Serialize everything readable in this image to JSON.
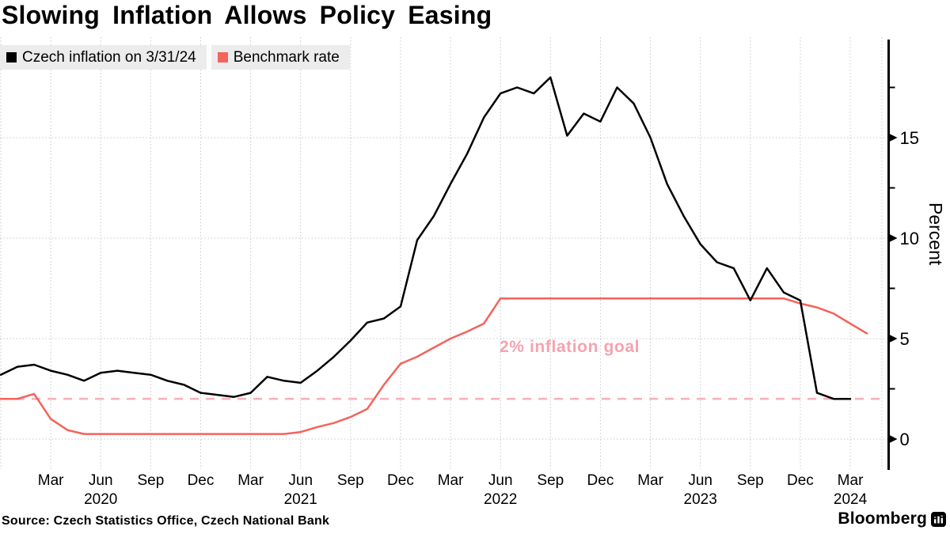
{
  "title": "Slowing Inflation Allows Policy Easing",
  "legend": [
    {
      "label": "Czech inflation on 3/31/24",
      "color": "#000000"
    },
    {
      "label": "Benchmark rate",
      "color": "#f4635c"
    }
  ],
  "source": "Source: Czech Statistics Office, Czech National Bank",
  "branding": {
    "logo_text": "Bloomberg",
    "logo_icon": "bar-chart-icon"
  },
  "chart_data": {
    "type": "line",
    "x_unit": "month",
    "x_start": "2019-12",
    "ylabel": "Percent",
    "y_ticks": [
      0,
      5,
      10,
      15
    ],
    "y_minor_ticks": [
      2.5,
      7.5,
      12.5,
      17.5
    ],
    "ylim": [
      -0.6,
      19.9
    ],
    "grid": "dotted",
    "legend_position": "top-left",
    "x_ticks": [
      {
        "m": 3,
        "label": "Mar"
      },
      {
        "m": 6,
        "label": "Jun"
      },
      {
        "m": 9,
        "label": "Sep"
      },
      {
        "m": 12,
        "label": "Dec"
      },
      {
        "m": 15,
        "label": "Mar"
      },
      {
        "m": 18,
        "label": "Jun"
      },
      {
        "m": 21,
        "label": "Sep"
      },
      {
        "m": 24,
        "label": "Dec"
      },
      {
        "m": 27,
        "label": "Mar"
      },
      {
        "m": 30,
        "label": "Jun"
      },
      {
        "m": 33,
        "label": "Sep"
      },
      {
        "m": 36,
        "label": "Dec"
      },
      {
        "m": 39,
        "label": "Mar"
      },
      {
        "m": 42,
        "label": "Jun"
      },
      {
        "m": 45,
        "label": "Sep"
      },
      {
        "m": 48,
        "label": "Dec"
      },
      {
        "m": 51,
        "label": "Mar"
      }
    ],
    "year_labels": [
      {
        "m": 6,
        "label": "2020"
      },
      {
        "m": 18,
        "label": "2021"
      },
      {
        "m": 30,
        "label": "2022"
      },
      {
        "m": 42,
        "label": "2023"
      },
      {
        "m": 51,
        "label": "2024"
      }
    ],
    "annotation": {
      "text": "2% inflation goal",
      "value": 2,
      "color": "#f5a3af"
    },
    "goal_line": {
      "value": 2,
      "style": "dashed",
      "color": "#f9b0ba"
    },
    "series": [
      {
        "name": "Czech inflation on 3/31/24",
        "color": "#000000",
        "start_month": "2019-12",
        "values": [
          3.2,
          3.6,
          3.7,
          3.4,
          3.2,
          2.9,
          3.3,
          3.4,
          3.3,
          3.2,
          2.9,
          2.7,
          2.3,
          2.2,
          2.1,
          2.3,
          3.1,
          2.9,
          2.8,
          3.4,
          4.1,
          4.9,
          5.8,
          6.0,
          6.6,
          9.9,
          11.1,
          12.7,
          14.2,
          16.0,
          17.2,
          17.5,
          17.2,
          18.0,
          15.1,
          16.2,
          15.8,
          17.5,
          16.7,
          15.0,
          12.7,
          11.1,
          9.7,
          8.8,
          8.5,
          6.9,
          8.5,
          7.3,
          6.9,
          2.3,
          2.0,
          2.0
        ]
      },
      {
        "name": "Benchmark rate",
        "color": "#f4635c",
        "start_month": "2019-12",
        "values": [
          2.0,
          2.0,
          2.25,
          1.0,
          0.45,
          0.25,
          0.25,
          0.25,
          0.25,
          0.25,
          0.25,
          0.25,
          0.25,
          0.25,
          0.25,
          0.25,
          0.25,
          0.25,
          0.35,
          0.6,
          0.8,
          1.1,
          1.5,
          2.7,
          3.75,
          4.1,
          4.55,
          5.0,
          5.35,
          5.75,
          7.0,
          7.0,
          7.0,
          7.0,
          7.0,
          7.0,
          7.0,
          7.0,
          7.0,
          7.0,
          7.0,
          7.0,
          7.0,
          7.0,
          7.0,
          7.0,
          7.0,
          7.0,
          6.75,
          6.55,
          6.25,
          5.75,
          5.25
        ]
      }
    ]
  }
}
